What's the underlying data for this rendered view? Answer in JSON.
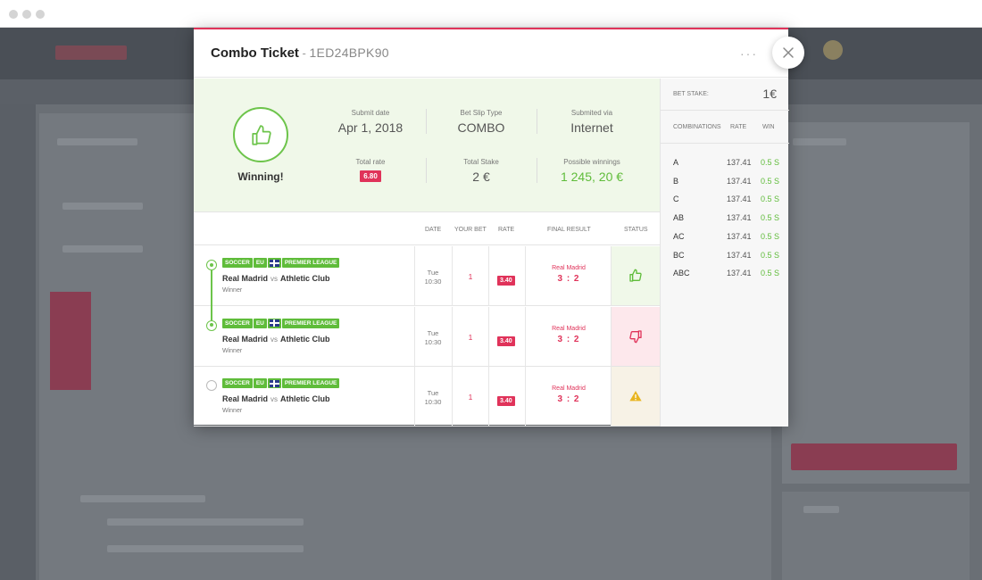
{
  "ticket": {
    "title": "Combo Ticket",
    "separator": " - ",
    "code": "1ED24BPK90",
    "more_label": "···",
    "status_label": "Winning!",
    "submit_date_label": "Submit date",
    "submit_date": "Apr 1, 2018",
    "slip_type_label": "Bet Slip Type",
    "slip_type": "COMBO",
    "submitted_via_label": "Submited via",
    "submitted_via": "Internet",
    "total_rate_label": "Total rate",
    "total_rate": "6.80",
    "total_stake_label": "Total Stake",
    "total_stake": "2 €",
    "possible_winnings_label": "Possible winnings",
    "possible_winnings": "1 245, 20 €"
  },
  "stake": {
    "label": "BET STAKE:",
    "value": "1€"
  },
  "combinations": {
    "headers": [
      "COMBINATIONS",
      "RATE",
      "WIN"
    ],
    "rows": [
      {
        "name": "A",
        "rate": "137.41",
        "win": "0.5 S"
      },
      {
        "name": "B",
        "rate": "137.41",
        "win": "0.5 S"
      },
      {
        "name": "C",
        "rate": "137.41",
        "win": "0.5 S"
      },
      {
        "name": "AB",
        "rate": "137.41",
        "win": "0.5 S"
      },
      {
        "name": "AC",
        "rate": "137.41",
        "win": "0.5 S"
      },
      {
        "name": "BC",
        "rate": "137.41",
        "win": "0.5 S"
      },
      {
        "name": "ABC",
        "rate": "137.41",
        "win": "0.5 S"
      }
    ]
  },
  "table": {
    "headers": {
      "date": "DATE",
      "your_bet": "YOUR BET",
      "rate": "RATE",
      "final_result": "FINAL RESULT",
      "status": "STATUS"
    },
    "vs_label": "vs",
    "rows": [
      {
        "tags": [
          "SOCCER",
          "EU",
          "PREMIER LEAGUE"
        ],
        "home": "Real Madrid",
        "away": "Athletic Club",
        "market": "Winner",
        "day": "Tue",
        "time": "10:30",
        "bet": "1",
        "rate": "3.40",
        "result_team": "Real Madrid",
        "score": "3 : 2",
        "status": "won",
        "selected": true
      },
      {
        "tags": [
          "SOCCER",
          "EU",
          "PREMIER LEAGUE"
        ],
        "home": "Real Madrid",
        "away": "Athletic Club",
        "market": "Winner",
        "day": "Tue",
        "time": "10:30",
        "bet": "1",
        "rate": "3.40",
        "result_team": "Real Madrid",
        "score": "3 : 2",
        "status": "lost",
        "selected": true
      },
      {
        "tags": [
          "SOCCER",
          "EU",
          "PREMIER LEAGUE"
        ],
        "home": "Real Madrid",
        "away": "Athletic Club",
        "market": "Winner",
        "day": "Tue",
        "time": "10:30",
        "bet": "1",
        "rate": "3.40",
        "result_team": "Real Madrid",
        "score": "3 : 2",
        "status": "warning",
        "selected": false
      }
    ]
  },
  "colors": {
    "accent": "#e0335a",
    "success": "#5fbc3a",
    "won_bg": "#f0f8e9",
    "lost_bg": "#fde8ec",
    "warning_bg": "#f7f2e6",
    "warning": "#e8b520"
  },
  "icons": {
    "won": "thumbs-up-icon",
    "lost": "thumbs-down-icon",
    "warning": "warning-icon",
    "close": "close-icon",
    "more": "more-icon"
  }
}
